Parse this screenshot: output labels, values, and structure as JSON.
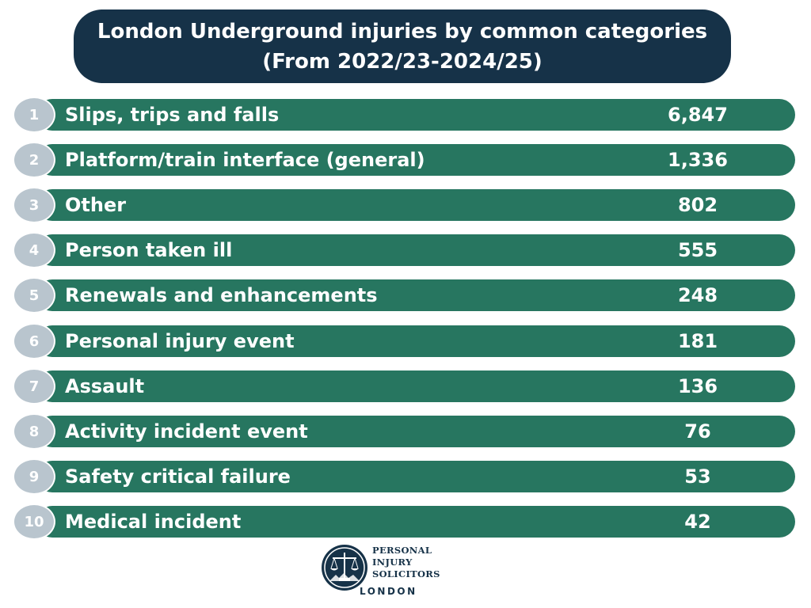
{
  "chart_data": {
    "type": "bar",
    "title": "London Underground injuries by common categories",
    "subtitle": "(From 2022/23-2024/25)",
    "ranks": [
      "1",
      "2",
      "3",
      "4",
      "5",
      "6",
      "7",
      "8",
      "9",
      "10"
    ],
    "categories": [
      "Slips, trips and falls",
      "Platform/train interface (general)",
      "Other",
      "Person taken ill",
      "Renewals and enhancements",
      "Personal injury event",
      "Assault",
      "Activity incident event",
      "Safety critical failure",
      "Medical incident"
    ],
    "value_labels": [
      "6,847",
      "1,336",
      "802",
      "555",
      "248",
      "181",
      "136",
      "76",
      "53",
      "42"
    ],
    "values": [
      6847,
      1336,
      802,
      555,
      248,
      181,
      136,
      76,
      53,
      42
    ]
  },
  "colors": {
    "title_bg": "#163248",
    "bar": "#277660",
    "rank_circle": "#b9c5ce"
  },
  "logo": {
    "lines": [
      "PERSONAL",
      "INJURY",
      "SOLICITORS"
    ],
    "city": "LONDON"
  }
}
